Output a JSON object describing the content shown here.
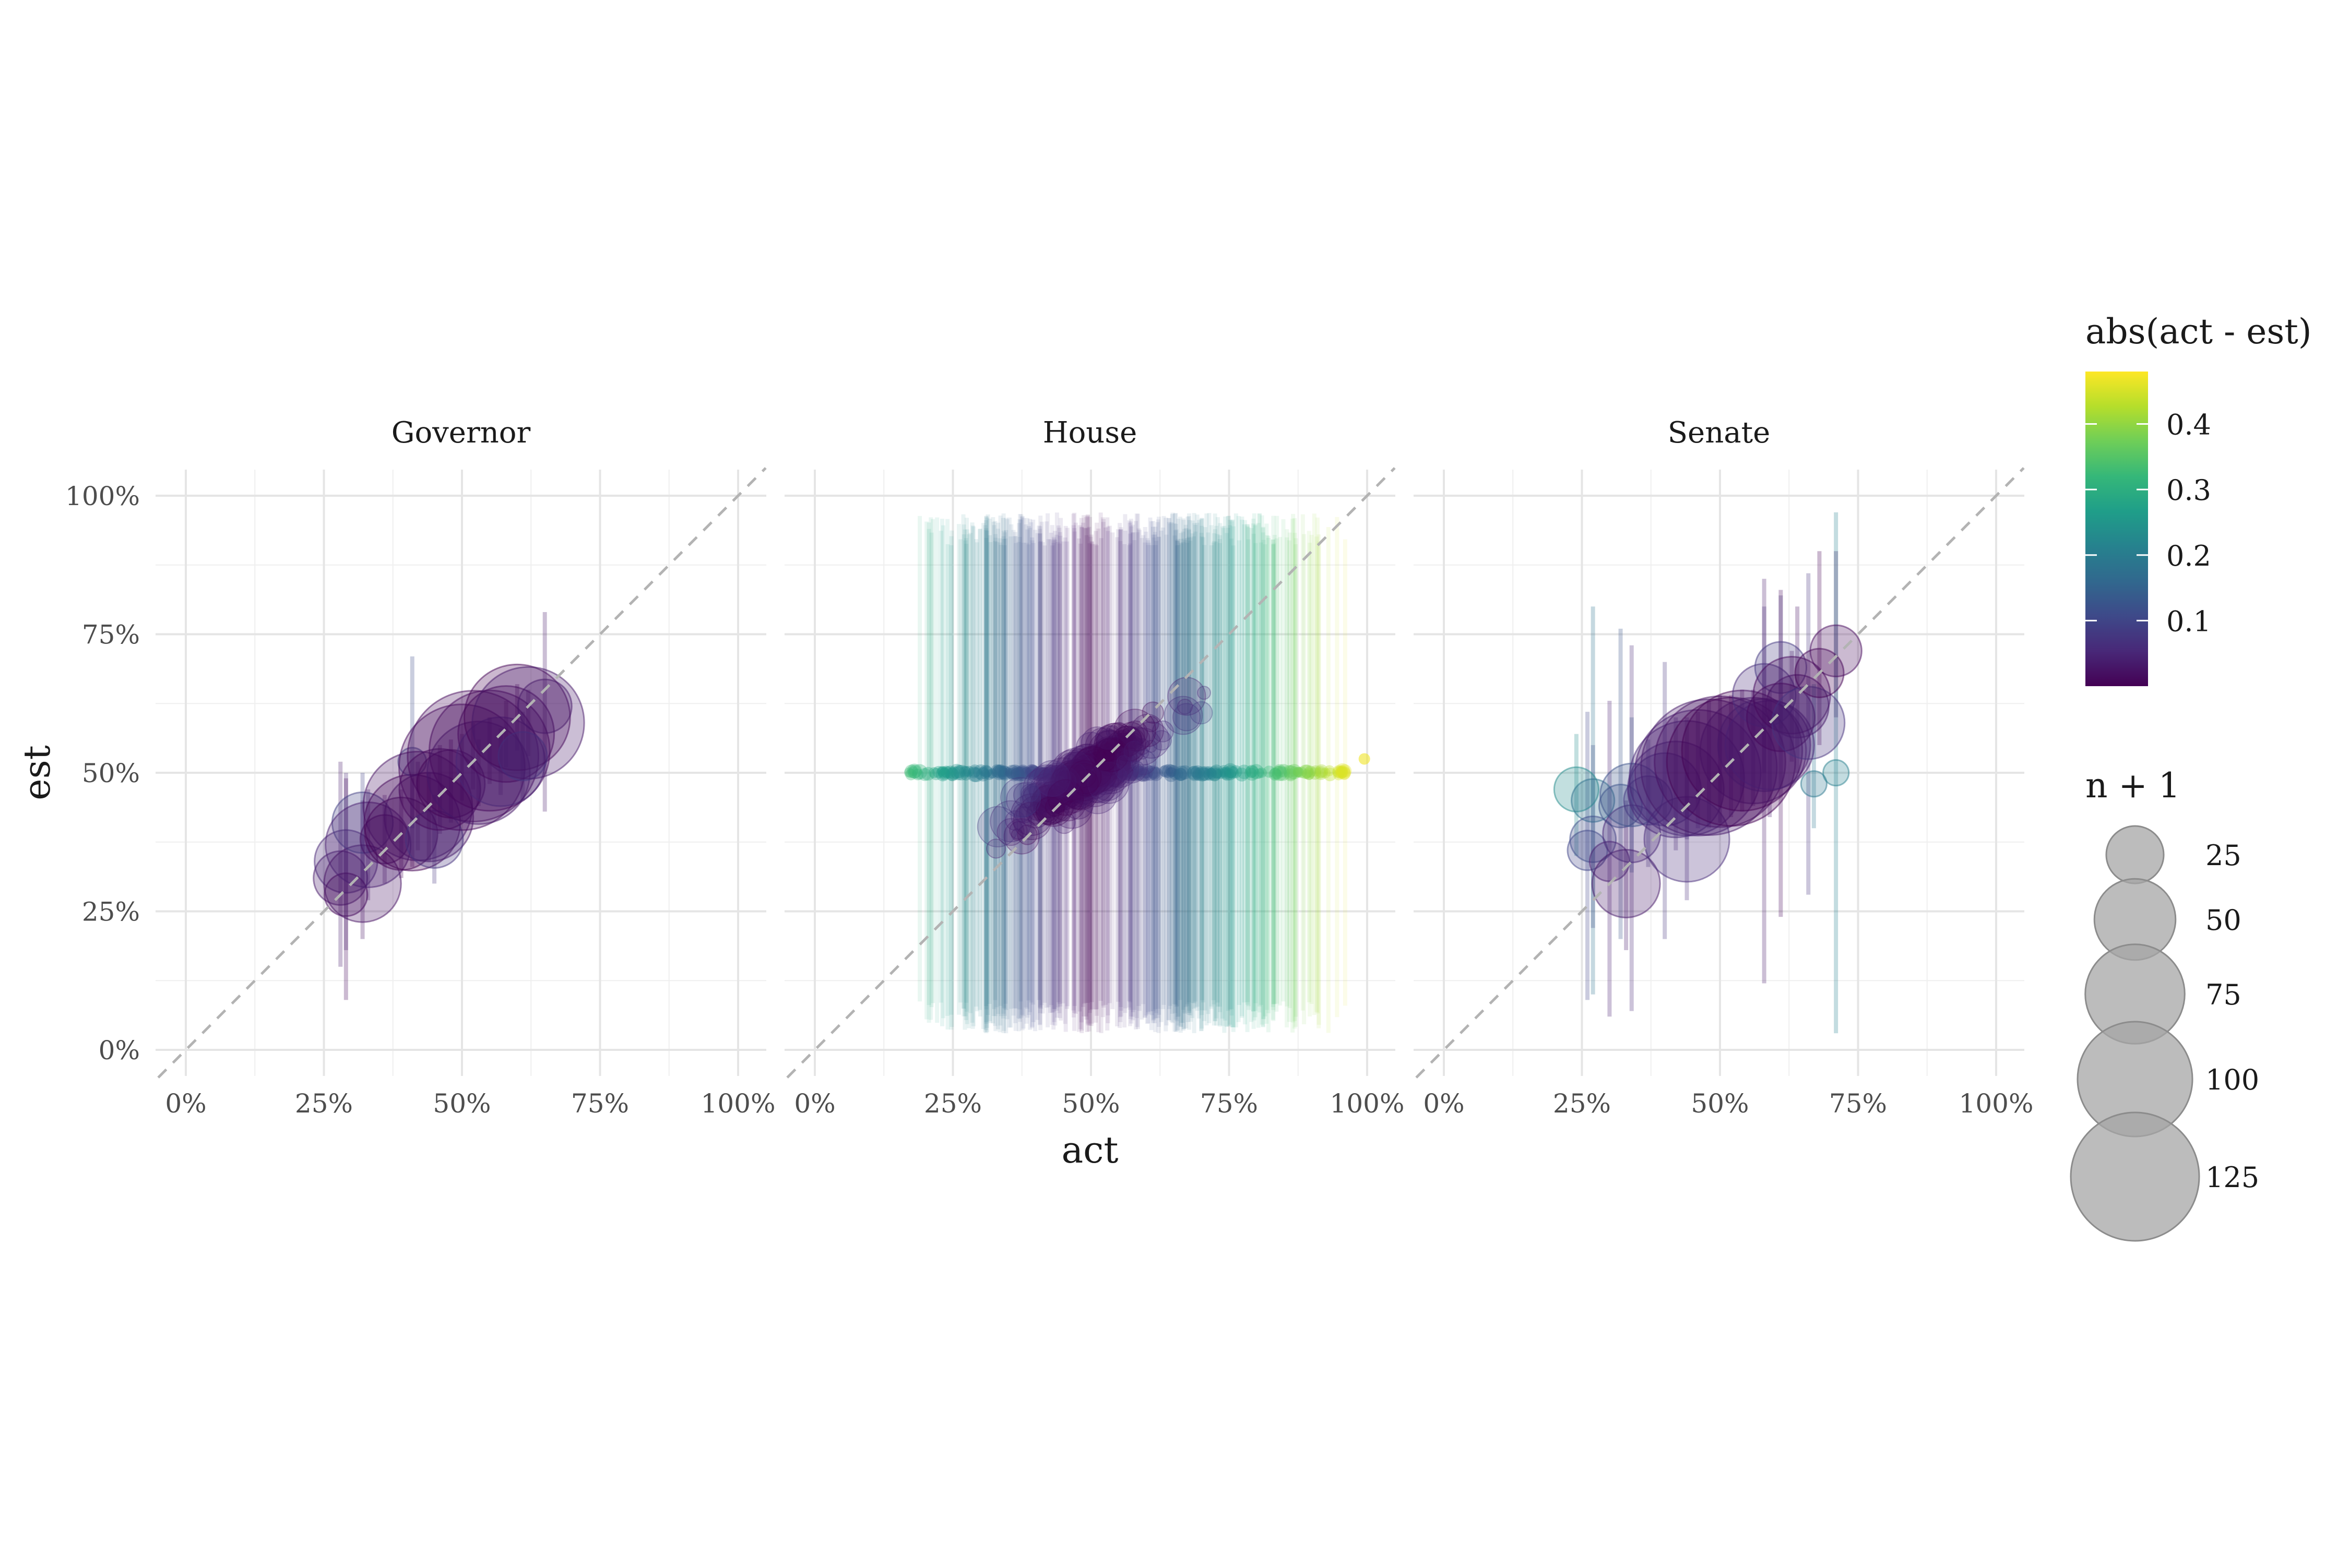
{
  "chart_data": {
    "type": "scatter",
    "facets": [
      "Governor",
      "House",
      "Senate"
    ],
    "xlabel": "act",
    "ylabel": "est",
    "xlim": [
      0,
      1
    ],
    "ylim": [
      0,
      1
    ],
    "x_ticks": [
      "0%",
      "25%",
      "50%",
      "75%",
      "100%"
    ],
    "y_ticks": [
      "0%",
      "25%",
      "50%",
      "75%",
      "100%"
    ],
    "reference_line": "y = x (dashed)",
    "grid": true,
    "legend_position": "right",
    "color_legend": {
      "title": "abs(act - est)",
      "scale": "viridis",
      "ticks": [
        "0.1",
        "0.2",
        "0.3",
        "0.4"
      ],
      "range": [
        0,
        0.48
      ]
    },
    "size_legend": {
      "title": "n + 1",
      "labels": [
        "25",
        "50",
        "75",
        "100",
        "125"
      ],
      "values": [
        25,
        50,
        75,
        100,
        125
      ]
    },
    "series": [
      {
        "facet": "Governor",
        "points": [
          {
            "x": 0.28,
            "y": 0.31,
            "n": 22,
            "lo": 0.15,
            "hi": 0.52
          },
          {
            "x": 0.29,
            "y": 0.34,
            "n": 30,
            "lo": 0.18,
            "hi": 0.5
          },
          {
            "x": 0.29,
            "y": 0.28,
            "n": 14,
            "lo": 0.09,
            "hi": 0.49
          },
          {
            "x": 0.32,
            "y": 0.3,
            "n": 45,
            "lo": 0.2,
            "hi": 0.45
          },
          {
            "x": 0.32,
            "y": 0.41,
            "n": 28,
            "lo": 0.3,
            "hi": 0.5
          },
          {
            "x": 0.33,
            "y": 0.37,
            "n": 55,
            "lo": 0.27,
            "hi": 0.47
          },
          {
            "x": 0.36,
            "y": 0.38,
            "n": 18,
            "lo": 0.3,
            "hi": 0.46
          },
          {
            "x": 0.39,
            "y": 0.39,
            "n": 40,
            "lo": 0.31,
            "hi": 0.47
          },
          {
            "x": 0.41,
            "y": 0.41,
            "n": 70,
            "lo": 0.33,
            "hi": 0.49
          },
          {
            "x": 0.41,
            "y": 0.52,
            "n": 6,
            "lo": 0.4,
            "hi": 0.71
          },
          {
            "x": 0.42,
            "y": 0.44,
            "n": 90,
            "lo": 0.36,
            "hi": 0.52
          },
          {
            "x": 0.44,
            "y": 0.42,
            "n": 60,
            "lo": 0.34,
            "hi": 0.5
          },
          {
            "x": 0.45,
            "y": 0.38,
            "n": 25,
            "lo": 0.3,
            "hi": 0.46
          },
          {
            "x": 0.46,
            "y": 0.47,
            "n": 50,
            "lo": 0.39,
            "hi": 0.55
          },
          {
            "x": 0.48,
            "y": 0.48,
            "n": 35,
            "lo": 0.41,
            "hi": 0.56
          },
          {
            "x": 0.5,
            "y": 0.51,
            "n": 120,
            "lo": 0.45,
            "hi": 0.57
          },
          {
            "x": 0.52,
            "y": 0.53,
            "n": 130,
            "lo": 0.47,
            "hi": 0.59
          },
          {
            "x": 0.53,
            "y": 0.5,
            "n": 80,
            "lo": 0.44,
            "hi": 0.56
          },
          {
            "x": 0.55,
            "y": 0.54,
            "n": 110,
            "lo": 0.48,
            "hi": 0.6
          },
          {
            "x": 0.57,
            "y": 0.52,
            "n": 60,
            "lo": 0.46,
            "hi": 0.58
          },
          {
            "x": 0.58,
            "y": 0.57,
            "n": 70,
            "lo": 0.51,
            "hi": 0.63
          },
          {
            "x": 0.6,
            "y": 0.6,
            "n": 85,
            "lo": 0.54,
            "hi": 0.66
          },
          {
            "x": 0.61,
            "y": 0.53,
            "n": 18,
            "lo": 0.45,
            "hi": 0.61
          },
          {
            "x": 0.62,
            "y": 0.59,
            "n": 95,
            "lo": 0.53,
            "hi": 0.65
          },
          {
            "x": 0.65,
            "y": 0.62,
            "n": 22,
            "lo": 0.43,
            "hi": 0.79
          }
        ]
      },
      {
        "facet": "Senate",
        "points": [
          {
            "x": 0.24,
            "y": 0.47,
            "n": 15,
            "lo": 0.35,
            "hi": 0.57
          },
          {
            "x": 0.26,
            "y": 0.36,
            "n": 12,
            "lo": 0.09,
            "hi": 0.61
          },
          {
            "x": 0.27,
            "y": 0.45,
            "n": 14,
            "lo": 0.1,
            "hi": 0.8
          },
          {
            "x": 0.27,
            "y": 0.38,
            "n": 16,
            "lo": 0.22,
            "hi": 0.55
          },
          {
            "x": 0.3,
            "y": 0.34,
            "n": 12,
            "lo": 0.06,
            "hi": 0.63
          },
          {
            "x": 0.32,
            "y": 0.44,
            "n": 14,
            "lo": 0.2,
            "hi": 0.76
          },
          {
            "x": 0.33,
            "y": 0.3,
            "n": 35,
            "lo": 0.18,
            "hi": 0.45
          },
          {
            "x": 0.34,
            "y": 0.39,
            "n": 25,
            "lo": 0.07,
            "hi": 0.73
          },
          {
            "x": 0.34,
            "y": 0.46,
            "n": 30,
            "lo": 0.32,
            "hi": 0.6
          },
          {
            "x": 0.37,
            "y": 0.45,
            "n": 18,
            "lo": 0.33,
            "hi": 0.56
          },
          {
            "x": 0.4,
            "y": 0.47,
            "n": 40,
            "lo": 0.2,
            "hi": 0.7
          },
          {
            "x": 0.42,
            "y": 0.47,
            "n": 70,
            "lo": 0.36,
            "hi": 0.6
          },
          {
            "x": 0.44,
            "y": 0.38,
            "n": 55,
            "lo": 0.27,
            "hi": 0.5
          },
          {
            "x": 0.44,
            "y": 0.49,
            "n": 100,
            "lo": 0.38,
            "hi": 0.6
          },
          {
            "x": 0.46,
            "y": 0.5,
            "n": 120,
            "lo": 0.4,
            "hi": 0.61
          },
          {
            "x": 0.48,
            "y": 0.51,
            "n": 140,
            "lo": 0.4,
            "hi": 0.63
          },
          {
            "x": 0.5,
            "y": 0.52,
            "n": 130,
            "lo": 0.41,
            "hi": 0.64
          },
          {
            "x": 0.52,
            "y": 0.52,
            "n": 125,
            "lo": 0.42,
            "hi": 0.64
          },
          {
            "x": 0.54,
            "y": 0.54,
            "n": 110,
            "lo": 0.43,
            "hi": 0.65
          },
          {
            "x": 0.56,
            "y": 0.54,
            "n": 85,
            "lo": 0.44,
            "hi": 0.65
          },
          {
            "x": 0.58,
            "y": 0.55,
            "n": 65,
            "lo": 0.12,
            "hi": 0.85
          },
          {
            "x": 0.58,
            "y": 0.64,
            "n": 30,
            "lo": 0.5,
            "hi": 0.8
          },
          {
            "x": 0.59,
            "y": 0.55,
            "n": 60,
            "lo": 0.42,
            "hi": 0.65
          },
          {
            "x": 0.61,
            "y": 0.69,
            "n": 20,
            "lo": 0.58,
            "hi": 0.82
          },
          {
            "x": 0.61,
            "y": 0.6,
            "n": 35,
            "lo": 0.24,
            "hi": 0.83
          },
          {
            "x": 0.63,
            "y": 0.64,
            "n": 45,
            "lo": 0.52,
            "hi": 0.72
          },
          {
            "x": 0.64,
            "y": 0.62,
            "n": 30,
            "lo": 0.5,
            "hi": 0.8
          },
          {
            "x": 0.66,
            "y": 0.59,
            "n": 40,
            "lo": 0.28,
            "hi": 0.86
          },
          {
            "x": 0.67,
            "y": 0.48,
            "n": 5,
            "lo": 0.4,
            "hi": 0.66
          },
          {
            "x": 0.68,
            "y": 0.68,
            "n": 18,
            "lo": 0.55,
            "hi": 0.9
          },
          {
            "x": 0.71,
            "y": 0.72,
            "n": 20,
            "lo": 0.6,
            "hi": 0.9
          },
          {
            "x": 0.71,
            "y": 0.5,
            "n": 5,
            "lo": 0.03,
            "hi": 0.97
          }
        ]
      }
    ],
    "house_summary": {
      "facet": "House",
      "note": "dense cloud of many districts; many est values clustered at 50% with intervals spanning roughly 3%–97%; act ranges roughly 15%–100%",
      "act_range": [
        0.15,
        1.0
      ],
      "interval_range": [
        0.03,
        0.97
      ],
      "band_center_est": 0.5
    }
  }
}
